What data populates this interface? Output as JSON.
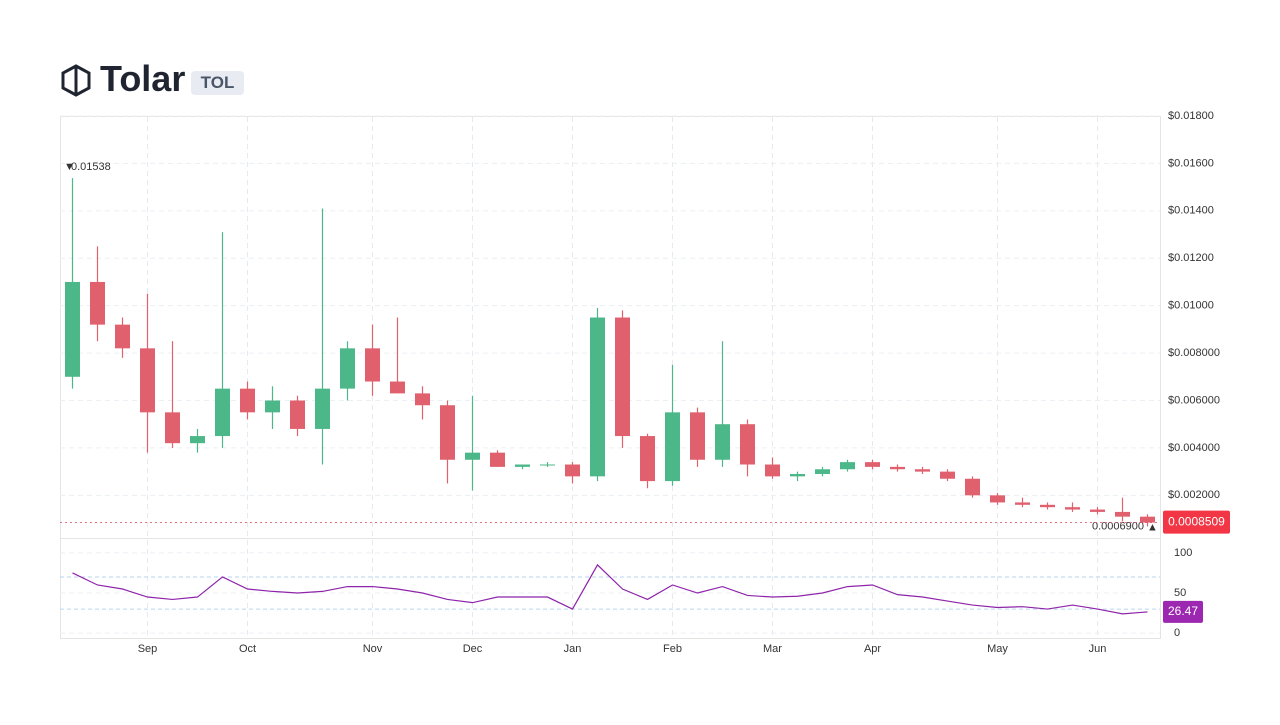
{
  "header": {
    "title": "Tolar",
    "symbol": "TOL"
  },
  "chart_data": [
    {
      "type": "candlestick",
      "categories": [
        null,
        null,
        null,
        "Sep",
        null,
        null,
        null,
        "Oct",
        null,
        null,
        null,
        null,
        "Nov",
        null,
        null,
        null,
        "Dec",
        null,
        null,
        null,
        "Jan",
        null,
        null,
        null,
        "Feb",
        null,
        null,
        null,
        "Mar",
        null,
        null,
        null,
        "Apr",
        null,
        null,
        null,
        null,
        "May",
        null,
        null,
        null,
        "Jun",
        null,
        null
      ],
      "open": [
        0.007,
        0.011,
        0.0092,
        0.0082,
        0.0055,
        0.0042,
        0.0045,
        0.0065,
        0.0055,
        0.006,
        0.0048,
        0.0065,
        0.0082,
        0.0068,
        0.0063,
        0.0058,
        0.0035,
        0.0038,
        0.0032,
        0.0033,
        0.0033,
        0.0028,
        0.0095,
        0.0045,
        0.0026,
        0.0055,
        0.0035,
        0.005,
        0.0033,
        0.0028,
        0.0029,
        0.0031,
        0.0034,
        0.0032,
        0.0031,
        0.003,
        0.0027,
        0.002,
        0.0017,
        0.0016,
        0.0015,
        0.0014,
        0.0013,
        0.0011
      ],
      "high": [
        0.01538,
        0.0125,
        0.0095,
        0.0105,
        0.0085,
        0.0048,
        0.0131,
        0.0068,
        0.0066,
        0.0062,
        0.0141,
        0.0085,
        0.0092,
        0.0095,
        0.0066,
        0.006,
        0.0062,
        0.0039,
        0.0033,
        0.0034,
        0.0034,
        0.0099,
        0.0098,
        0.0046,
        0.0075,
        0.0057,
        0.0085,
        0.0052,
        0.0036,
        0.003,
        0.0032,
        0.0035,
        0.0035,
        0.0033,
        0.0032,
        0.0031,
        0.0028,
        0.0021,
        0.0019,
        0.0017,
        0.0017,
        0.0015,
        0.0019,
        0.0012
      ],
      "low": [
        0.0065,
        0.0085,
        0.0078,
        0.0038,
        0.004,
        0.0038,
        0.004,
        0.0052,
        0.0048,
        0.0045,
        0.0033,
        0.006,
        0.0062,
        0.0063,
        0.0052,
        0.0025,
        0.0022,
        0.0032,
        0.0031,
        0.0032,
        0.0025,
        0.0026,
        0.004,
        0.0023,
        0.0024,
        0.0032,
        0.0032,
        0.0028,
        0.0027,
        0.0026,
        0.0028,
        0.003,
        0.0031,
        0.003,
        0.0029,
        0.0026,
        0.0019,
        0.0016,
        0.0015,
        0.0014,
        0.0013,
        0.0012,
        0.0009,
        0.00069
      ],
      "close": [
        0.011,
        0.0092,
        0.0082,
        0.0055,
        0.0042,
        0.0045,
        0.0065,
        0.0055,
        0.006,
        0.0048,
        0.0065,
        0.0082,
        0.0068,
        0.0063,
        0.0058,
        0.0035,
        0.0038,
        0.0032,
        0.0033,
        0.0033,
        0.0028,
        0.0095,
        0.0045,
        0.0026,
        0.0055,
        0.0035,
        0.005,
        0.0033,
        0.0028,
        0.0029,
        0.0031,
        0.0034,
        0.0032,
        0.0031,
        0.003,
        0.0027,
        0.002,
        0.0017,
        0.0016,
        0.0015,
        0.0014,
        0.0013,
        0.0011,
        0.0008509
      ],
      "up_color": "#4cb88a",
      "down_color": "#e0606e",
      "low_marker": {
        "value": 0.00069,
        "label": "0.0006900"
      },
      "ylim": [
        0.0002,
        0.018
      ],
      "yticks": [
        {
          "value": 0.018,
          "label": "$0.01800"
        },
        {
          "value": 0.016,
          "label": "$0.01600"
        },
        {
          "value": 0.014,
          "label": "$0.01400"
        },
        {
          "value": 0.012,
          "label": "$0.01200"
        },
        {
          "value": 0.01,
          "label": "$0.01000"
        },
        {
          "value": 0.008,
          "label": "$0.008000"
        },
        {
          "value": 0.006,
          "label": "$0.006000"
        },
        {
          "value": 0.004,
          "label": "$0.004000"
        },
        {
          "value": 0.002,
          "label": "$0.002000"
        }
      ],
      "grid": true
    },
    {
      "type": "line",
      "values": [
        75,
        60,
        55,
        45,
        42,
        45,
        70,
        55,
        52,
        50,
        52,
        58,
        58,
        55,
        50,
        42,
        38,
        45,
        45,
        45,
        30,
        85,
        55,
        42,
        60,
        50,
        58,
        47,
        45,
        46,
        50,
        58,
        60,
        48,
        45,
        40,
        35,
        32,
        33,
        30,
        35,
        30,
        24,
        26.47
      ],
      "color": "#8e24aa",
      "tag_color": "#9c27b0",
      "reference_lines": [
        30,
        70
      ],
      "ylim": [
        -6,
        116
      ],
      "yticks": [
        0,
        50,
        100
      ]
    }
  ]
}
